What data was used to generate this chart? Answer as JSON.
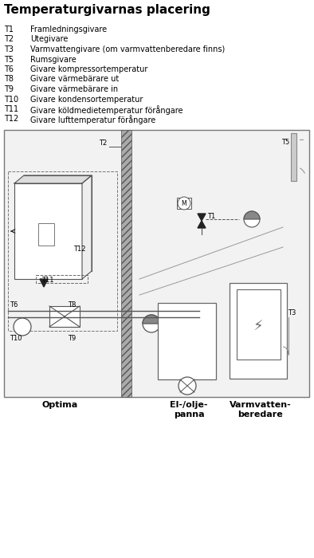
{
  "title": "Temperaturgivarnas placering",
  "legend_items": [
    [
      "T1",
      "Framledningsgivare"
    ],
    [
      "T2",
      "Utegivare"
    ],
    [
      "T3",
      "Varmvattengivare (om varmvattenberedare finns)"
    ],
    [
      "T5",
      "Rumsgivare"
    ],
    [
      "T6",
      "Givare kompressortemperatur"
    ],
    [
      "T8",
      "Givare värmebärare ut"
    ],
    [
      "T9",
      "Givare värmebärare in"
    ],
    [
      "T10",
      "Givare kondensortemperatur"
    ],
    [
      "T11",
      "Givare köldmedietemperatur förångare"
    ],
    [
      "T12",
      "Givare lufttemperatur förångare"
    ]
  ],
  "labels": {
    "optima": "Optima",
    "elpanna": "El-/olje-\npanna",
    "varmvatten": "Varmvatten-\nberedare"
  },
  "bg_color": "#ffffff"
}
